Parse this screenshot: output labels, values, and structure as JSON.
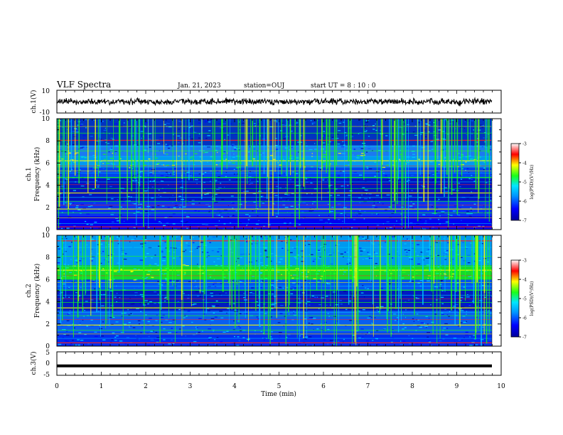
{
  "header": {
    "title": "VLF Spectra",
    "date": "Jan. 21, 2023",
    "station": "station=OUJ",
    "start_ut": "start UT =  8 : 10 : 0"
  },
  "colors": {
    "low": "#00009a",
    "mid": "#00c8ff",
    "high": "#19ff19",
    "hot": "#ff2020",
    "accent": "#ffff00"
  },
  "chart_data": [
    {
      "type": "line",
      "panel": "ch1_waveform",
      "ylabel": "ch.1(V)",
      "ylim": [
        -10,
        10
      ],
      "yticks": [
        "10",
        "-10"
      ],
      "xlim": [
        0,
        10
      ],
      "trace_level": 0
    },
    {
      "type": "heatmap",
      "panel": "ch1_spectrogram",
      "ylabel_line1": "ch.1",
      "ylabel_line2": "Frequency (kHz)",
      "ylim": [
        0,
        10
      ],
      "yticks": [
        "0",
        "2",
        "4",
        "6",
        "8",
        "10"
      ],
      "xlim": [
        0,
        10
      ],
      "colorbar": {
        "label": "log(PSD)(V²/Hz)",
        "range": [
          -7,
          -3
        ],
        "ticks": [
          "-3",
          "-4",
          "-5",
          "-6",
          "-7"
        ]
      }
    },
    {
      "type": "heatmap",
      "panel": "ch2_spectrogram",
      "ylabel_line1": "ch.2",
      "ylabel_line2": "Frequency (kHz)",
      "ylim": [
        0,
        10
      ],
      "yticks": [
        "0",
        "2",
        "4",
        "6",
        "8",
        "10"
      ],
      "xlim": [
        0,
        10
      ],
      "colorbar": {
        "label": "log(PSD)(V²/Hz)",
        "range": [
          -7,
          -3
        ],
        "ticks": [
          "-3",
          "-4",
          "-5",
          "-6",
          "-7"
        ]
      }
    },
    {
      "type": "line",
      "panel": "ch3_waveform",
      "ylabel": "ch.3(V)",
      "ylim": [
        -5,
        5
      ],
      "yticks": [
        "5",
        "0",
        "-5"
      ],
      "xlim": [
        0,
        10
      ],
      "trace_level": -1
    }
  ],
  "xaxis": {
    "label": "Time (min)",
    "ticks": [
      "0",
      "1",
      "2",
      "3",
      "4",
      "5",
      "6",
      "7",
      "8",
      "9",
      "10"
    ]
  }
}
